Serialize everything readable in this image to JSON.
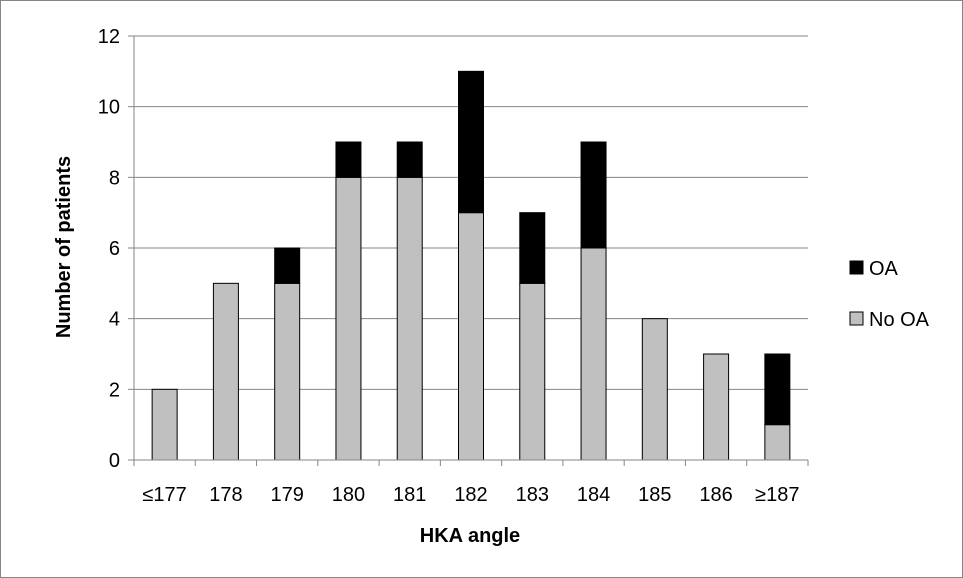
{
  "chart_data": {
    "type": "bar",
    "stacked": true,
    "categories": [
      "≤177",
      "178",
      "179",
      "180",
      "181",
      "182",
      "183",
      "184",
      "185",
      "186",
      "≥187"
    ],
    "series": [
      {
        "name": "No OA",
        "values": [
          2,
          5,
          5,
          8,
          8,
          7,
          5,
          6,
          4,
          3,
          1
        ],
        "color": "#c0c0c0"
      },
      {
        "name": "OA",
        "values": [
          0,
          0,
          1,
          1,
          1,
          4,
          2,
          3,
          0,
          0,
          2
        ],
        "color": "#000000"
      }
    ],
    "title": "",
    "xlabel": "HKA angle",
    "ylabel": "Number of patients",
    "ylim": [
      0,
      12
    ],
    "yticks": [
      "0",
      "2",
      "4",
      "6",
      "8",
      "10",
      "12"
    ],
    "grid": true,
    "legend": {
      "position": "right",
      "entries": [
        "OA",
        "No OA"
      ]
    }
  }
}
